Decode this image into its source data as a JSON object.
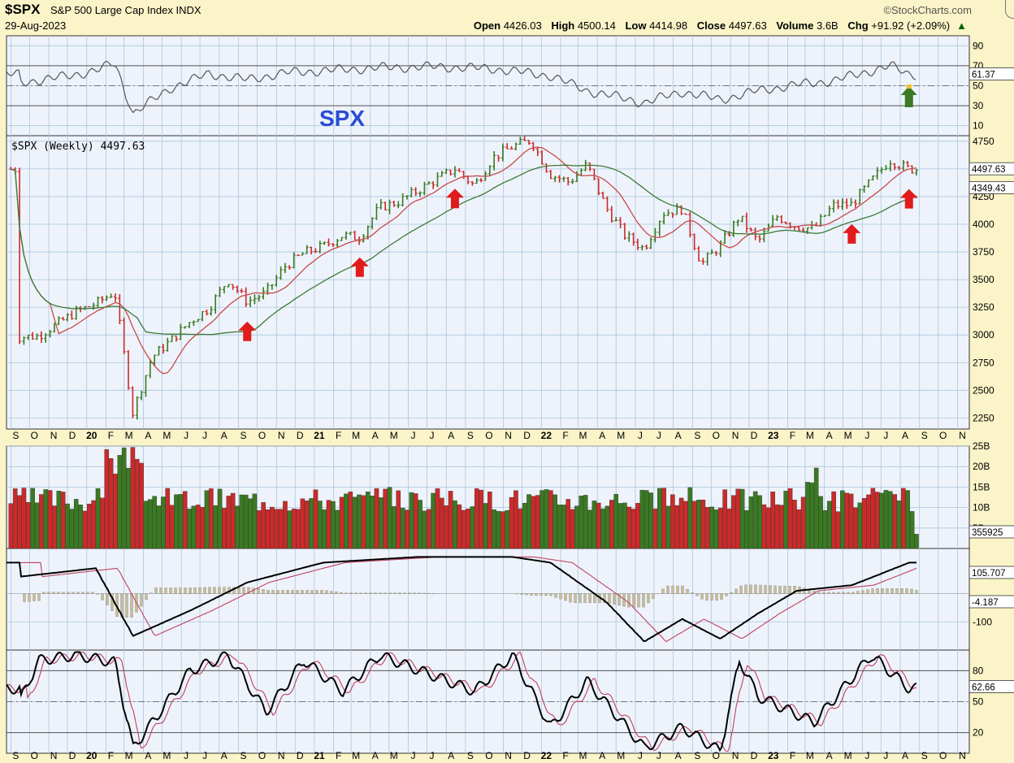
{
  "header": {
    "symbol": "$SPX",
    "name": "S&P 500 Large Cap Index",
    "exchange": "INDX",
    "brand": "©StockCharts.com",
    "date": "29-Aug-2023",
    "open_label": "Open",
    "open": "4426.03",
    "high_label": "High",
    "high": "4500.14",
    "low_label": "Low",
    "low": "4414.98",
    "close_label": "Close",
    "close": "4497.63",
    "volume_label": "Volume",
    "volume": "3.6B",
    "chg_label": "Chg",
    "chg": "+91.92 (+2.09%)",
    "chg_arrow": "▲"
  },
  "colors": {
    "up": "#3A7A22",
    "down": "#CC2A2A",
    "ma_fast": "#C84A4A",
    "ma_slow": "#3E7A35",
    "arrow_red": "#E11B1B",
    "arrow_green": "#3C7A25",
    "watermark": "#2B4BD6"
  },
  "chart_data": [
    {
      "type": "line",
      "panel": "rsi",
      "y_ticks": [
        "90",
        "70",
        "50",
        "30",
        "10"
      ],
      "ylim": [
        0,
        100
      ],
      "ref_lines": [
        70,
        50,
        30
      ],
      "x": [
        "2019-09",
        "2019-11",
        "2020-01",
        "2020-02",
        "2020-03",
        "2020-05",
        "2020-07",
        "2020-09",
        "2020-11",
        "2021-01",
        "2021-04",
        "2021-07",
        "2021-10",
        "2022-01",
        "2022-03",
        "2022-06",
        "2022-08",
        "2022-10",
        "2022-12",
        "2023-02",
        "2023-04",
        "2023-06",
        "2023-07",
        "2023-08"
      ],
      "values": [
        53,
        58,
        65,
        73,
        22,
        48,
        62,
        56,
        63,
        65,
        68,
        69,
        67,
        60,
        45,
        33,
        44,
        36,
        45,
        51,
        55,
        65,
        70,
        61.37
      ],
      "current_label": "61.37",
      "arrow_green": "2023-08"
    },
    {
      "type": "candlestick",
      "panel": "price",
      "legend": "$SPX (Weekly) 4497.63",
      "watermark": "SPX",
      "y_ticks": [
        "4750",
        "4500",
        "4250",
        "4000",
        "3750",
        "3500",
        "3250",
        "3000",
        "2750",
        "2500",
        "2250"
      ],
      "ylim": [
        2150,
        4800
      ],
      "x_months": [
        "S",
        "O",
        "N",
        "D",
        "20",
        "F",
        "M",
        "A",
        "M",
        "J",
        "J",
        "A",
        "S",
        "O",
        "N",
        "D",
        "21",
        "F",
        "M",
        "A",
        "M",
        "J",
        "J",
        "A",
        "S",
        "O",
        "N",
        "D",
        "22",
        "F",
        "M",
        "A",
        "M",
        "J",
        "J",
        "A",
        "S",
        "O",
        "N",
        "D",
        "23",
        "F",
        "M",
        "A",
        "M",
        "J",
        "J",
        "A",
        "S",
        "O",
        "N"
      ],
      "close": [
        [
          "2019-09",
          2980
        ],
        [
          "2019-10",
          2990
        ],
        [
          "2019-11",
          3100
        ],
        [
          "2019-12",
          3210
        ],
        [
          "2020-01",
          3280
        ],
        [
          "2020-02",
          3390
        ],
        [
          "2020-03",
          2300
        ],
        [
          "2020-04",
          2800
        ],
        [
          "2020-05",
          2950
        ],
        [
          "2020-06",
          3120
        ],
        [
          "2020-07",
          3240
        ],
        [
          "2020-08",
          3500
        ],
        [
          "2020-09",
          3300
        ],
        [
          "2020-10",
          3380
        ],
        [
          "2020-11",
          3620
        ],
        [
          "2020-12",
          3740
        ],
        [
          "2021-01",
          3800
        ],
        [
          "2021-02",
          3900
        ],
        [
          "2021-03",
          3880
        ],
        [
          "2021-04",
          4150
        ],
        [
          "2021-05",
          4200
        ],
        [
          "2021-06",
          4300
        ],
        [
          "2021-07",
          4400
        ],
        [
          "2021-08",
          4500
        ],
        [
          "2021-09",
          4350
        ],
        [
          "2021-10",
          4600
        ],
        [
          "2021-11",
          4700
        ],
        [
          "2021-12",
          4760
        ],
        [
          "2022-01",
          4450
        ],
        [
          "2022-02",
          4380
        ],
        [
          "2022-03",
          4540
        ],
        [
          "2022-04",
          4150
        ],
        [
          "2022-05",
          3900
        ],
        [
          "2022-06",
          3780
        ],
        [
          "2022-07",
          4100
        ],
        [
          "2022-08",
          4140
        ],
        [
          "2022-09",
          3640
        ],
        [
          "2022-10",
          3800
        ],
        [
          "2022-11",
          4070
        ],
        [
          "2022-12",
          3840
        ],
        [
          "2023-01",
          4070
        ],
        [
          "2023-02",
          3980
        ],
        [
          "2023-03",
          3960
        ],
        [
          "2023-04",
          4170
        ],
        [
          "2023-05",
          4180
        ],
        [
          "2023-06",
          4390
        ],
        [
          "2023-07",
          4580
        ],
        [
          "2023-08",
          4497.63
        ]
      ],
      "ma_fast_label": "4497.63",
      "ma_slow_label": "4349.43",
      "red_arrows": [
        "2020-09",
        "2021-03",
        "2021-08",
        "2023-05",
        "2023-08"
      ]
    },
    {
      "type": "bar",
      "panel": "volume",
      "y_ticks": [
        "25B",
        "20B",
        "15B",
        "10B",
        "5B"
      ],
      "ylim": [
        0,
        25
      ],
      "peak_dates": [
        "2020-03",
        "2023-03"
      ],
      "current_label": "355925"
    },
    {
      "type": "line",
      "panel": "ppo",
      "y_ticks": [
        "-100"
      ],
      "macd_label": "105.707",
      "hist_label": "-4.187",
      "points": [
        [
          "2019-09",
          60
        ],
        [
          "2020-01",
          90
        ],
        [
          "2020-03",
          -150
        ],
        [
          "2020-06",
          -60
        ],
        [
          "2020-09",
          40
        ],
        [
          "2021-01",
          110
        ],
        [
          "2021-06",
          130
        ],
        [
          "2021-11",
          130
        ],
        [
          "2022-01",
          110
        ],
        [
          "2022-04",
          -30
        ],
        [
          "2022-06",
          -170
        ],
        [
          "2022-08",
          -90
        ],
        [
          "2022-10",
          -160
        ],
        [
          "2022-12",
          -70
        ],
        [
          "2023-02",
          10
        ],
        [
          "2023-05",
          30
        ],
        [
          "2023-08",
          110
        ]
      ]
    },
    {
      "type": "line",
      "panel": "stoch",
      "y_ticks": [
        "80",
        "50",
        "20"
      ],
      "current_label": "62.66",
      "ref_lines": [
        80,
        50,
        20
      ],
      "points": [
        [
          "2019-09",
          50
        ],
        [
          "2019-10",
          90
        ],
        [
          "2019-12",
          95
        ],
        [
          "2020-02",
          88
        ],
        [
          "2020-03",
          5
        ],
        [
          "2020-04",
          30
        ],
        [
          "2020-06",
          80
        ],
        [
          "2020-08",
          95
        ],
        [
          "2020-10",
          40
        ],
        [
          "2020-12",
          90
        ],
        [
          "2021-02",
          60
        ],
        [
          "2021-04",
          95
        ],
        [
          "2021-09",
          60
        ],
        [
          "2021-11",
          95
        ],
        [
          "2022-01",
          25
        ],
        [
          "2022-03",
          70
        ],
        [
          "2022-06",
          5
        ],
        [
          "2022-08",
          25
        ],
        [
          "2022-10",
          2
        ],
        [
          "2022-11",
          90
        ],
        [
          "2022-12",
          55
        ],
        [
          "2023-03",
          30
        ],
        [
          "2023-06",
          95
        ],
        [
          "2023-08",
          62.66
        ]
      ]
    }
  ]
}
